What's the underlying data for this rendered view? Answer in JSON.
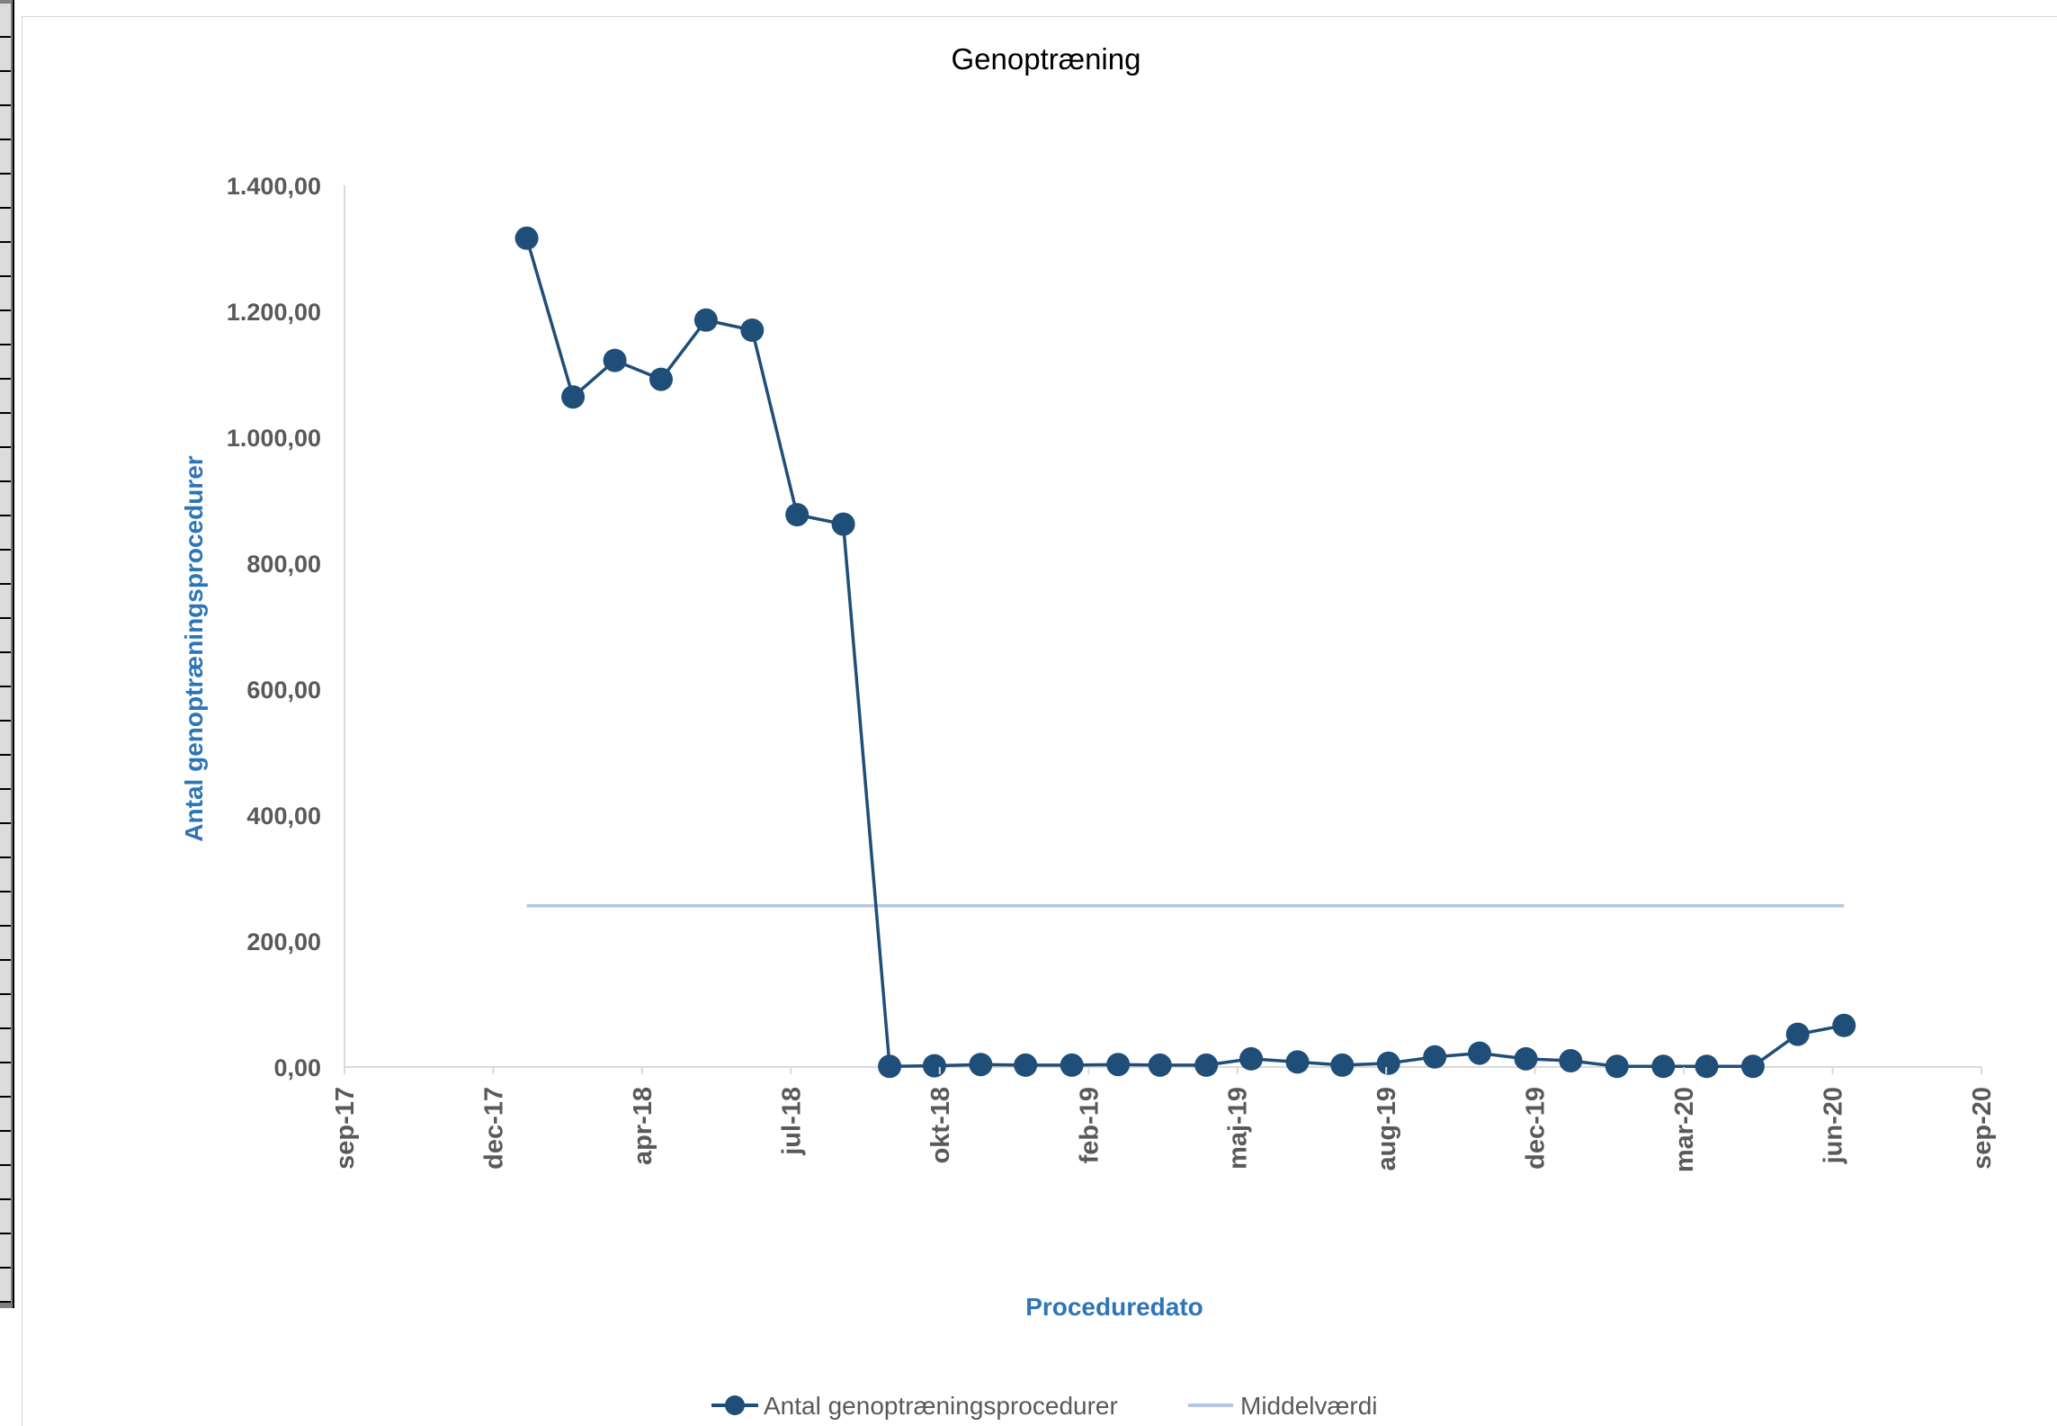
{
  "chart_data": {
    "type": "line",
    "title": "Genoptræning",
    "xlabel": "Proceduredato",
    "ylabel": "Antal genoptræningsprocedurer",
    "x_tick_labels": [
      "sep-17",
      "dec-17",
      "apr-18",
      "jul-18",
      "okt-18",
      "feb-19",
      "maj-19",
      "aug-19",
      "dec-19",
      "mar-20",
      "jun-20",
      "sep-20"
    ],
    "y_tick_labels": [
      "0,00",
      "200,00",
      "400,00",
      "600,00",
      "800,00",
      "1.000,00",
      "1.200,00",
      "1.400,00"
    ],
    "ylim": [
      0,
      1400
    ],
    "xlim": [
      "2017-09-01",
      "2020-09-01"
    ],
    "grid": false,
    "legend_position": "bottom",
    "series": [
      {
        "name": "Antal genoptræningsprocedurer",
        "color": "#1f4e79",
        "marker": "circle",
        "x": [
          "2018-01-01",
          "2018-02-01",
          "2018-03-01",
          "2018-04-01",
          "2018-05-01",
          "2018-06-01",
          "2018-07-01",
          "2018-08-01",
          "2018-09-01",
          "2018-10-01",
          "2018-11-01",
          "2018-12-01",
          "2019-01-01",
          "2019-02-01",
          "2019-03-01",
          "2019-04-01",
          "2019-05-01",
          "2019-06-01",
          "2019-07-01",
          "2019-08-01",
          "2019-09-01",
          "2019-10-01",
          "2019-11-01",
          "2019-12-01",
          "2020-01-01",
          "2020-02-01",
          "2020-03-01",
          "2020-04-01",
          "2020-05-01",
          "2020-06-01"
        ],
        "values": [
          1316,
          1064,
          1122,
          1092,
          1186,
          1170,
          877,
          862,
          1,
          2,
          4,
          3,
          3,
          4,
          3,
          3,
          13,
          8,
          3,
          6,
          16,
          22,
          13,
          10,
          1,
          1,
          1,
          1,
          52,
          66
        ]
      },
      {
        "name": "Middelværdi",
        "color": "#b4c7e7",
        "x": [
          "2018-01-01",
          "2020-06-01"
        ],
        "values": [
          256,
          256
        ]
      }
    ]
  }
}
